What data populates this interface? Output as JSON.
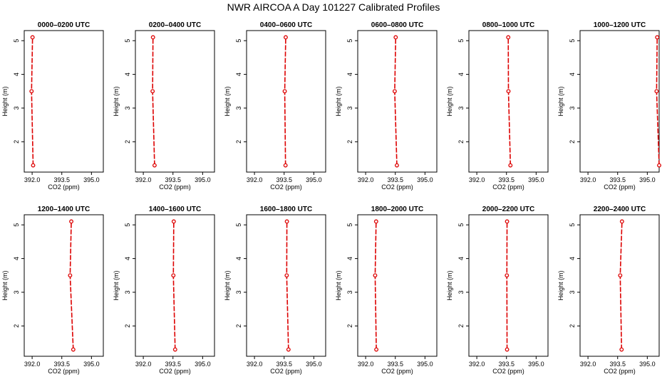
{
  "title": "NWR AIRCOA A  Day 101227  Calibrated Profiles",
  "colors": {
    "profile": "#dd0000",
    "frame": "#000000"
  },
  "chart_data": {
    "type": "line",
    "xlabel": "CO2 (ppm)",
    "ylabel": "Height (m)",
    "xlim": [
      391.6,
      395.6
    ],
    "ylim": [
      1.1,
      5.3
    ],
    "xticks": [
      392.0,
      393.5,
      395.0
    ],
    "xtick_labels": [
      "392.0",
      "393.5",
      "395.0"
    ],
    "yticks": [
      2,
      3,
      4,
      5
    ],
    "ytick_labels": [
      "2",
      "3",
      "4",
      "5"
    ],
    "heights": [
      1.3,
      3.5,
      5.1
    ],
    "panels": [
      {
        "title": "0000–0200 UTC",
        "co2": [
          392.05,
          391.97,
          392.02
        ]
      },
      {
        "title": "0200–0400 UTC",
        "co2": [
          392.57,
          392.47,
          392.49
        ]
      },
      {
        "title": "0400–0600 UTC",
        "co2": [
          393.57,
          393.53,
          393.58
        ]
      },
      {
        "title": "0600–0800 UTC",
        "co2": [
          393.58,
          393.47,
          393.52
        ]
      },
      {
        "title": "0800–1000 UTC",
        "co2": [
          393.7,
          393.6,
          393.59
        ]
      },
      {
        "title": "1000–1200 UTC",
        "co2": [
          395.6,
          395.47,
          395.5
        ]
      },
      {
        "title": "1200–1400 UTC",
        "co2": [
          394.08,
          393.92,
          393.98
        ]
      },
      {
        "title": "1400–1600 UTC",
        "co2": [
          393.61,
          393.52,
          393.54
        ]
      },
      {
        "title": "1600–1800 UTC",
        "co2": [
          393.72,
          393.63,
          393.64
        ]
      },
      {
        "title": "1800–2000 UTC",
        "co2": [
          392.54,
          392.48,
          392.53
        ]
      },
      {
        "title": "2000–2200 UTC",
        "co2": [
          393.53,
          393.52,
          393.53
        ]
      },
      {
        "title": "2200–2400 UTC",
        "co2": [
          393.7,
          393.63,
          393.72
        ]
      }
    ]
  }
}
